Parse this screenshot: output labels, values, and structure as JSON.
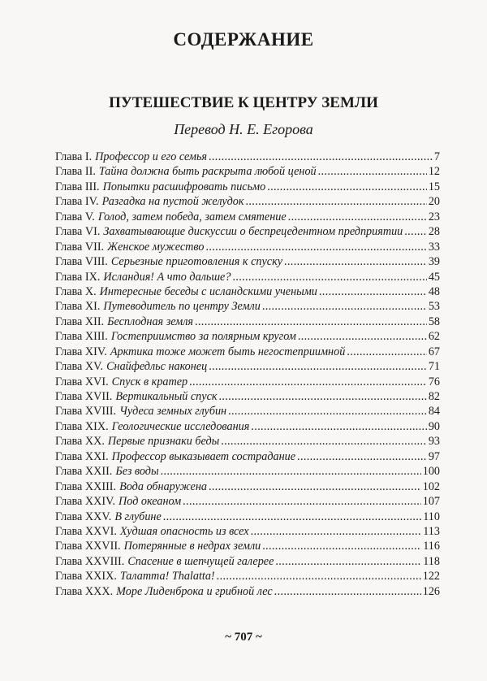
{
  "heading": "СОДЕРЖАНИЕ",
  "book_title": "ПУТЕШЕСТВИЕ К ЦЕНТРУ ЗЕМЛИ",
  "translator": "Перевод Н. Е. Егорова",
  "entries": [
    {
      "chapter": "Глава I.",
      "title": "Профессор и его семья",
      "page": "7"
    },
    {
      "chapter": "Глава II.",
      "title": "Тайна должна быть раскрыта любой ценой",
      "page": "12"
    },
    {
      "chapter": "Глава III.",
      "title": "Попытки расшифровать письмо",
      "page": "15"
    },
    {
      "chapter": "Глава IV.",
      "title": "Разгадка на пустой желудок",
      "page": "20"
    },
    {
      "chapter": "Глава V.",
      "title": "Голод, затем победа, затем смятение",
      "page": "23"
    },
    {
      "chapter": "Глава VI.",
      "title": "Захватывающие дискуссии о беспрецедентном предприятии",
      "page": "28"
    },
    {
      "chapter": "Глава VII.",
      "title": "Женское мужество",
      "page": "33"
    },
    {
      "chapter": "Глава VIII.",
      "title": "Серьезные приготовления к спуску",
      "page": "39"
    },
    {
      "chapter": "Глава IX.",
      "title": "Исландия! А что дальше?",
      "page": "45"
    },
    {
      "chapter": "Глава X.",
      "title": "Интересные беседы с исландскими учеными",
      "page": "48"
    },
    {
      "chapter": "Глава XI.",
      "title": "Путеводитель по центру Земли",
      "page": "53"
    },
    {
      "chapter": "Глава XII.",
      "title": "Бесплодная земля",
      "page": "58"
    },
    {
      "chapter": "Глава XIII.",
      "title": "Гостеприимство за полярным кругом",
      "page": "62"
    },
    {
      "chapter": "Глава XIV.",
      "title": "Арктика тоже может быть негостеприимной",
      "page": "67"
    },
    {
      "chapter": "Глава XV.",
      "title": "Снайфедльс наконец",
      "page": "71"
    },
    {
      "chapter": "Глава XVI.",
      "title": "Спуск в кратер",
      "page": "76"
    },
    {
      "chapter": "Глава XVII.",
      "title": "Вертикальный спуск",
      "page": "82"
    },
    {
      "chapter": "Глава XVIII.",
      "title": "Чудеса земных глубин",
      "page": "84"
    },
    {
      "chapter": "Глава XIX.",
      "title": "Геологические исследования",
      "page": "90"
    },
    {
      "chapter": "Глава XX.",
      "title": "Первые признаки беды",
      "page": "93"
    },
    {
      "chapter": "Глава XXI.",
      "title": "Профессор выказывает сострадание",
      "page": "97"
    },
    {
      "chapter": "Глава XXII.",
      "title": "Без воды",
      "page": "100"
    },
    {
      "chapter": "Глава XXIII.",
      "title": "Вода обнаружена",
      "page": "102"
    },
    {
      "chapter": "Глава XXIV.",
      "title": "Под океаном",
      "page": "107"
    },
    {
      "chapter": "Глава XXV.",
      "title": "В глубине",
      "page": "110"
    },
    {
      "chapter": "Глава XXVI.",
      "title": "Худшая опасность из всех",
      "page": "113"
    },
    {
      "chapter": "Глава XXVII.",
      "title": "Потерянные в недрах земли",
      "page": "116"
    },
    {
      "chapter": "Глава XXVIII.",
      "title": "Спасение в шепчущей галерее",
      "page": "118"
    },
    {
      "chapter": "Глава XXIX.",
      "title": "Талатта! Thalatta!",
      "page": "122"
    },
    {
      "chapter": "Глава XXX.",
      "title": "Море Лиденброка и грибной лес",
      "page": "126"
    }
  ],
  "page_number": "~ 707 ~"
}
